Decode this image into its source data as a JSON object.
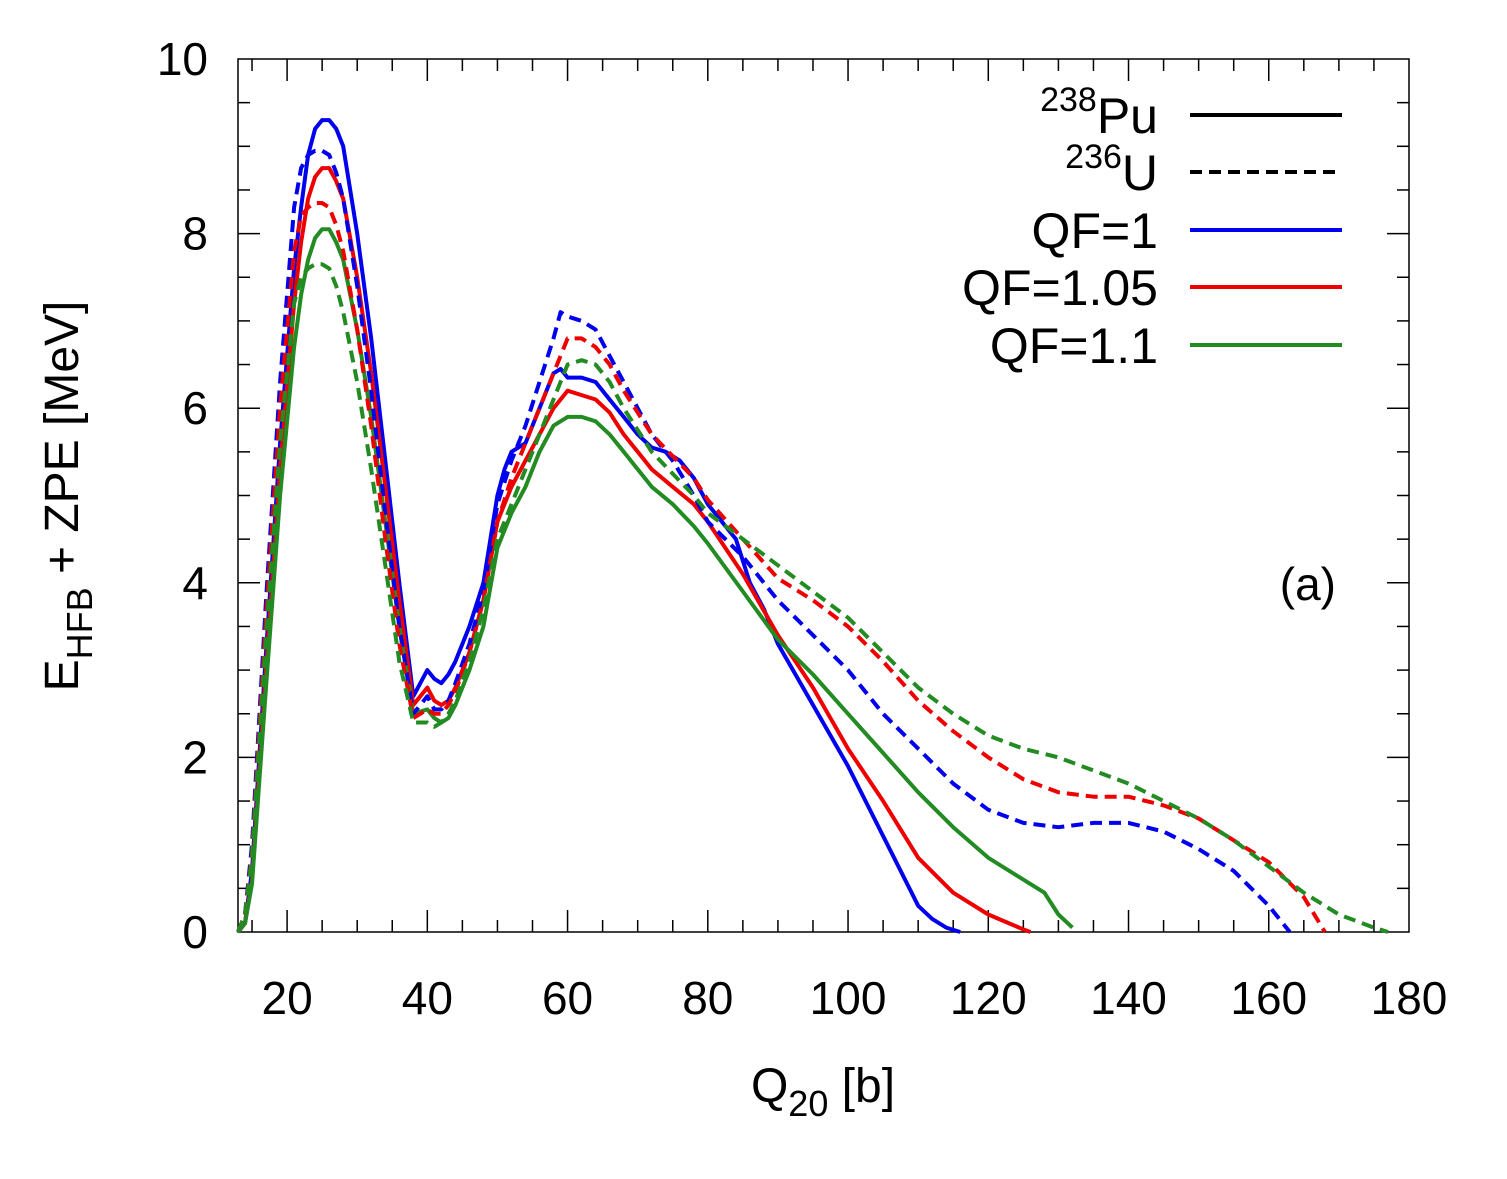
{
  "chart_data": {
    "type": "line",
    "title": "",
    "xlabel": {
      "main": "Q",
      "sub": "20",
      "unit": " [b]"
    },
    "ylabel": {
      "main": "E",
      "sub": "HFB",
      "rest": " + ZPE [MeV]"
    },
    "xlim": [
      13,
      180
    ],
    "ylim": [
      0,
      10
    ],
    "xticks": [
      20,
      40,
      60,
      80,
      100,
      120,
      140,
      160,
      180
    ],
    "yticks": [
      0,
      2,
      4,
      6,
      8,
      10
    ],
    "annotation": "(a)",
    "legend": [
      {
        "pre": "",
        "sup": "238",
        "main": "Pu",
        "color": "#000000",
        "dash": "solid"
      },
      {
        "pre": "",
        "sup": "236",
        "main": "U",
        "color": "#000000",
        "dash": "dashed"
      },
      {
        "pre": "QF=1",
        "sup": "",
        "main": "",
        "color": "#0000ee",
        "dash": "solid"
      },
      {
        "pre": "QF=1.05",
        "sup": "",
        "main": "",
        "color": "#ee0000",
        "dash": "solid"
      },
      {
        "pre": "QF=1.1",
        "sup": "",
        "main": "",
        "color": "#228b22",
        "dash": "solid"
      }
    ],
    "series": [
      {
        "name": "238Pu QF=1",
        "color": "#0000ee",
        "dash": "solid",
        "x": [
          13,
          14,
          15,
          17,
          19,
          21,
          22,
          23,
          24,
          25,
          26,
          27,
          28,
          30,
          32,
          34,
          36,
          38,
          40,
          41,
          42,
          43,
          44,
          46,
          48,
          50,
          51,
          52,
          54,
          56,
          58,
          59,
          60,
          62,
          64,
          66,
          68,
          70,
          72,
          74,
          76,
          78,
          80,
          84,
          86,
          88,
          90,
          95,
          100,
          105,
          110,
          112,
          114,
          116
        ],
        "y": [
          0,
          0.1,
          0.7,
          3.2,
          5.6,
          7.6,
          8.3,
          8.9,
          9.2,
          9.3,
          9.3,
          9.2,
          9.0,
          8.0,
          6.8,
          5.4,
          4.0,
          2.7,
          3.0,
          2.9,
          2.85,
          2.95,
          3.1,
          3.5,
          4.0,
          5.0,
          5.3,
          5.5,
          5.6,
          6.0,
          6.4,
          6.45,
          6.35,
          6.35,
          6.3,
          6.1,
          5.9,
          5.7,
          5.55,
          5.5,
          5.4,
          5.2,
          4.9,
          4.5,
          4.0,
          3.7,
          3.3,
          2.6,
          1.9,
          1.1,
          0.3,
          0.15,
          0.05,
          0
        ]
      },
      {
        "name": "238Pu QF=1.05",
        "color": "#ee0000",
        "dash": "solid",
        "x": [
          13,
          14,
          15,
          17,
          19,
          21,
          22,
          23,
          24,
          25,
          26,
          27,
          28,
          30,
          32,
          34,
          36,
          38,
          40,
          41,
          42,
          43,
          44,
          46,
          48,
          50,
          52,
          54,
          56,
          58,
          60,
          62,
          64,
          66,
          68,
          70,
          72,
          75,
          78,
          80,
          85,
          90,
          95,
          100,
          105,
          110,
          115,
          120,
          125,
          126
        ],
        "y": [
          0,
          0.1,
          0.6,
          3.0,
          5.3,
          7.2,
          7.9,
          8.4,
          8.65,
          8.75,
          8.75,
          8.6,
          8.4,
          7.5,
          6.4,
          5.1,
          3.8,
          2.6,
          2.8,
          2.65,
          2.6,
          2.65,
          2.8,
          3.2,
          3.8,
          4.7,
          5.1,
          5.4,
          5.7,
          6.0,
          6.2,
          6.15,
          6.1,
          5.95,
          5.7,
          5.5,
          5.3,
          5.1,
          4.9,
          4.7,
          4.1,
          3.4,
          2.8,
          2.1,
          1.5,
          0.85,
          0.45,
          0.2,
          0.03,
          0
        ]
      },
      {
        "name": "238Pu QF=1.1",
        "color": "#228b22",
        "dash": "solid",
        "x": [
          13,
          14,
          15,
          17,
          19,
          21,
          22,
          23,
          24,
          25,
          26,
          27,
          28,
          30,
          32,
          34,
          36,
          38,
          40,
          41,
          42,
          43,
          44,
          46,
          48,
          50,
          52,
          54,
          56,
          58,
          60,
          62,
          64,
          66,
          68,
          70,
          72,
          75,
          78,
          80,
          85,
          90,
          95,
          100,
          105,
          110,
          115,
          120,
          125,
          128,
          130,
          132
        ],
        "y": [
          0,
          0.1,
          0.55,
          2.8,
          5.0,
          6.7,
          7.3,
          7.7,
          7.95,
          8.05,
          8.05,
          7.9,
          7.7,
          6.9,
          5.9,
          4.7,
          3.5,
          2.5,
          2.55,
          2.45,
          2.4,
          2.45,
          2.6,
          3.0,
          3.5,
          4.4,
          4.8,
          5.1,
          5.5,
          5.8,
          5.9,
          5.9,
          5.85,
          5.7,
          5.5,
          5.3,
          5.1,
          4.9,
          4.65,
          4.45,
          3.9,
          3.35,
          2.95,
          2.5,
          2.05,
          1.6,
          1.2,
          0.85,
          0.6,
          0.45,
          0.2,
          0.05
        ]
      },
      {
        "name": "236U QF=1",
        "color": "#0000ee",
        "dash": "dashed",
        "x": [
          13,
          14,
          15,
          17,
          19,
          21,
          22,
          23,
          24,
          25,
          26,
          27,
          28,
          30,
          32,
          34,
          36,
          38,
          40,
          41,
          42,
          43,
          44,
          46,
          48,
          50,
          52,
          54,
          56,
          58,
          59,
          60,
          62,
          64,
          66,
          68,
          70,
          72,
          75,
          78,
          80,
          85,
          90,
          95,
          100,
          105,
          110,
          115,
          120,
          125,
          130,
          135,
          140,
          145,
          150,
          155,
          160,
          162,
          163
        ],
        "y": [
          0,
          0.2,
          1.0,
          3.8,
          6.3,
          8.3,
          8.75,
          8.9,
          8.95,
          8.95,
          8.9,
          8.7,
          8.4,
          7.4,
          6.2,
          4.8,
          3.5,
          2.5,
          2.7,
          2.55,
          2.55,
          2.65,
          2.85,
          3.3,
          3.9,
          4.9,
          5.4,
          5.8,
          6.3,
          6.8,
          7.1,
          7.05,
          7.0,
          6.9,
          6.6,
          6.3,
          6.0,
          5.7,
          5.4,
          5.0,
          4.7,
          4.3,
          3.8,
          3.4,
          3.0,
          2.5,
          2.1,
          1.7,
          1.4,
          1.25,
          1.2,
          1.25,
          1.25,
          1.15,
          0.95,
          0.7,
          0.3,
          0.1,
          0
        ]
      },
      {
        "name": "236U QF=1.05",
        "color": "#ee0000",
        "dash": "dashed",
        "x": [
          13,
          14,
          15,
          17,
          19,
          21,
          22,
          23,
          24,
          25,
          26,
          27,
          28,
          30,
          32,
          34,
          36,
          38,
          40,
          41,
          42,
          43,
          44,
          46,
          48,
          50,
          52,
          54,
          56,
          58,
          60,
          62,
          64,
          66,
          68,
          70,
          72,
          75,
          78,
          80,
          85,
          90,
          95,
          100,
          105,
          110,
          115,
          120,
          125,
          130,
          135,
          140,
          145,
          150,
          155,
          160,
          165,
          168
        ],
        "y": [
          0,
          0.2,
          0.9,
          3.6,
          6.0,
          7.8,
          8.2,
          8.3,
          8.35,
          8.35,
          8.3,
          8.1,
          7.8,
          6.9,
          5.8,
          4.5,
          3.3,
          2.45,
          2.55,
          2.5,
          2.5,
          2.6,
          2.75,
          3.2,
          3.8,
          4.7,
          5.2,
          5.6,
          6.0,
          6.4,
          6.8,
          6.8,
          6.7,
          6.5,
          6.2,
          5.95,
          5.7,
          5.45,
          5.2,
          4.95,
          4.5,
          4.05,
          3.8,
          3.5,
          3.1,
          2.65,
          2.3,
          2.0,
          1.75,
          1.6,
          1.55,
          1.55,
          1.45,
          1.3,
          1.05,
          0.8,
          0.4,
          0
        ]
      },
      {
        "name": "236U QF=1.1",
        "color": "#228b22",
        "dash": "dashed",
        "x": [
          13,
          14,
          15,
          17,
          19,
          21,
          22,
          23,
          24,
          25,
          26,
          27,
          28,
          30,
          32,
          34,
          36,
          38,
          40,
          41,
          42,
          43,
          44,
          46,
          48,
          50,
          52,
          54,
          56,
          58,
          60,
          62,
          64,
          66,
          68,
          70,
          72,
          75,
          78,
          80,
          85,
          90,
          95,
          100,
          105,
          110,
          115,
          120,
          125,
          130,
          135,
          140,
          145,
          150,
          155,
          160,
          165,
          170,
          175,
          177
        ],
        "y": [
          0,
          0.2,
          0.85,
          3.4,
          5.6,
          7.2,
          7.5,
          7.6,
          7.65,
          7.65,
          7.6,
          7.4,
          7.1,
          6.3,
          5.3,
          4.2,
          3.1,
          2.4,
          2.4,
          2.35,
          2.4,
          2.5,
          2.65,
          3.1,
          3.7,
          4.5,
          4.9,
          5.3,
          5.7,
          6.1,
          6.5,
          6.55,
          6.5,
          6.3,
          6.0,
          5.75,
          5.5,
          5.25,
          5.0,
          4.8,
          4.5,
          4.2,
          3.9,
          3.6,
          3.2,
          2.8,
          2.5,
          2.25,
          2.1,
          2.0,
          1.85,
          1.7,
          1.5,
          1.3,
          1.05,
          0.75,
          0.45,
          0.2,
          0.05,
          0
        ]
      }
    ]
  }
}
